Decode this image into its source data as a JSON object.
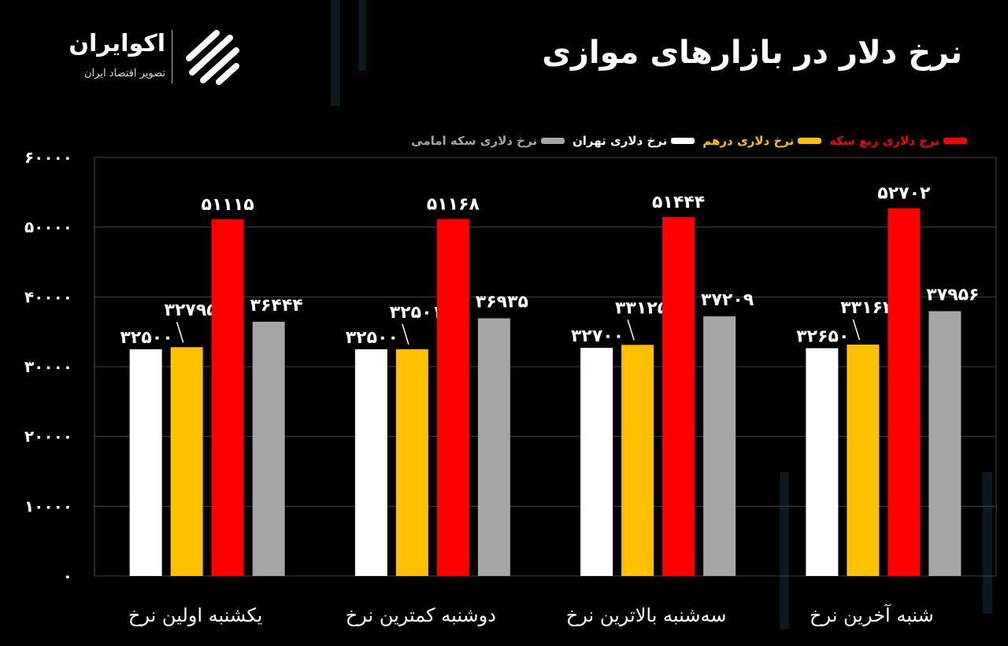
{
  "title": "نرخ دلار در بازارهای موازی",
  "logo": {
    "name": "اکوایران",
    "tagline": "تصویر اقتصاد ایران"
  },
  "chart_data": {
    "type": "bar",
    "title": "نرخ دلار در بازارهای موازی",
    "xlabel": "",
    "ylabel": "",
    "categories": [
      "یکشنبه اولین نرخ",
      "دوشنبه کمترین نرخ",
      "سه‌شنبه بالاترین نرخ",
      "شنبه آخرین نرخ"
    ],
    "ylim": [
      0,
      60000
    ],
    "yticks": [
      0,
      10000,
      20000,
      30000,
      40000,
      50000,
      60000
    ],
    "grid": true,
    "legend_position": "top-right",
    "series": [
      {
        "name": "نرخ دلاری تهران",
        "color": "#ffffff",
        "values": [
          32500,
          32500,
          32700,
          32650
        ]
      },
      {
        "name": "نرخ دلاری درهم",
        "color": "#ffc000",
        "values": [
          32795,
          32501,
          33125,
          33162
        ]
      },
      {
        "name": "نرخ دلاری ربع سکه",
        "color": "#ff0000",
        "values": [
          51115,
          51168,
          51444,
          52702
        ]
      },
      {
        "name": "نرخ دلاری سکه امامی",
        "color": "#a6a6a6",
        "values": [
          36444,
          36935,
          37209,
          37956
        ]
      }
    ],
    "legend_order": [
      2,
      1,
      0,
      3
    ]
  }
}
